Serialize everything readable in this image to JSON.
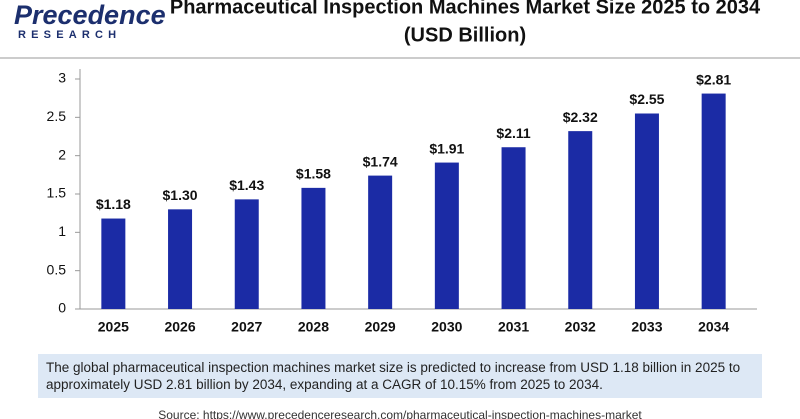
{
  "brand": {
    "name": "Precedence",
    "tagline": "RESEARCH"
  },
  "chart_data": {
    "type": "bar",
    "title": "Pharmaceutical Inspection Machines Market Size 2025 to 2034",
    "subtitle": "(USD Billion)",
    "categories": [
      "2025",
      "2026",
      "2027",
      "2028",
      "2029",
      "2030",
      "2031",
      "2032",
      "2033",
      "2034"
    ],
    "values": [
      1.18,
      1.3,
      1.43,
      1.58,
      1.74,
      1.91,
      2.11,
      2.32,
      2.55,
      2.81
    ],
    "value_labels": [
      "$1.18",
      "$1.30",
      "$1.43",
      "$1.58",
      "$1.74",
      "$1.91",
      "$2.11",
      "$2.32",
      "$2.55",
      "$2.81"
    ],
    "color": "#1b2ba5",
    "ylim": [
      0,
      3
    ],
    "yticks": [
      0,
      0.5,
      1,
      1.5,
      2,
      2.5,
      3
    ],
    "grid": false
  },
  "description": "The global pharmaceutical inspection machines market size is predicted to increase from USD 1.18 billion in 2025 to approximately USD 2.81 billion by 2034, expanding at a CAGR of 10.15% from 2025 to 2034.",
  "source": "Source: https://www.precedenceresearch.com/pharmaceutical-inspection-machines-market"
}
